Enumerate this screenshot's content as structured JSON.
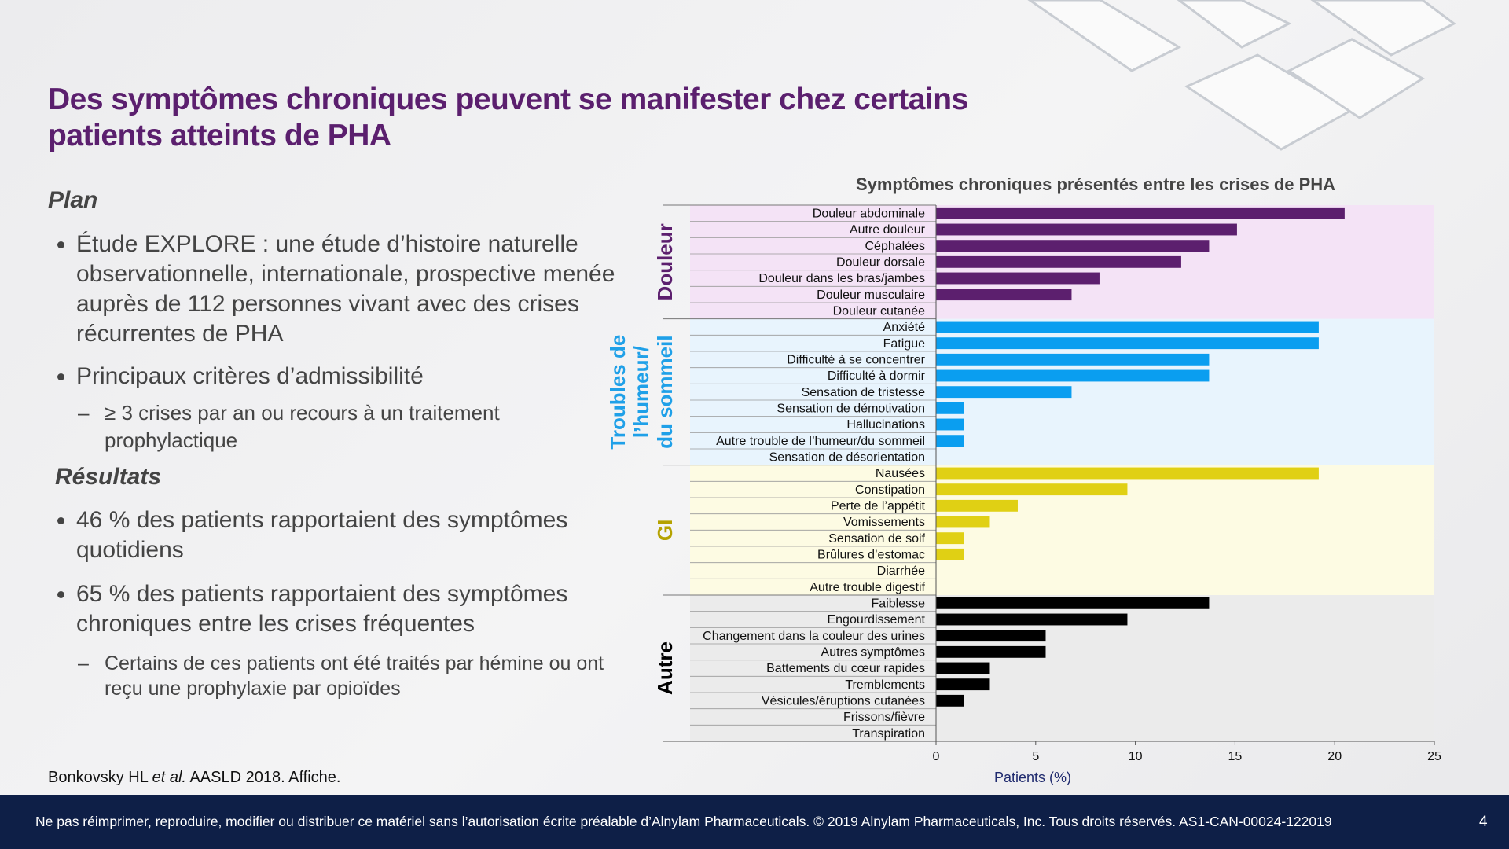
{
  "header": {
    "title": "Des symptômes chroniques peuvent se manifester chez certains patients atteints de PHA"
  },
  "plan": {
    "heading": "Plan",
    "bullets": [
      "Étude EXPLORE : une étude d’histoire naturelle observationnelle, internationale, prospective menée auprès de 112 personnes vivant avec des crises récurrentes de PHA",
      "Principaux critères d’admissibilité"
    ],
    "sub_bullet": "≥ 3 crises par an ou recours à un traitement prophylactique"
  },
  "results": {
    "heading": "Résultats",
    "bullets": [
      "46 % des patients rapportaient des symptômes quotidiens",
      "65 % des patients rapportaient des symptômes chroniques entre les crises fréquentes"
    ],
    "sub_bullet": "Certains de ces patients ont été traités par hémine ou ont reçu une prophylaxie par opioïdes"
  },
  "reference": [
    "Bonkovsky HL ",
    "et al.",
    " AASLD 2018. Affiche."
  ],
  "footer": {
    "text": "Ne pas réimprimer, reproduire, modifier ou distribuer ce matériel sans l’autorisation écrite préalable d’Alnylam Pharmaceuticals. © 2019 Alnylam Pharmaceuticals, Inc. Tous droits réservés. AS1-CAN-00024-122019",
    "page": "4"
  },
  "chart_data": {
    "type": "grouped-hbar",
    "title": "Symptômes chroniques présentés entre les crises de PHA",
    "x_label": "Patients (%)",
    "xlim": [
      0,
      25
    ],
    "xticks": [
      0,
      5,
      10,
      15,
      20,
      25
    ],
    "groups": [
      {
        "label_lines": [
          "Douleur"
        ],
        "color": "#5c1f6e",
        "label_color": "#5c1f6e",
        "background": "#f4e3f6",
        "categories": [
          "Douleur abdominale",
          "Autre douleur",
          "Céphalées",
          "Douleur dorsale",
          "Douleur dans les bras/jambes",
          "Douleur musculaire",
          "Douleur cutanée"
        ],
        "values": [
          20.5,
          15.1,
          13.7,
          12.3,
          8.2,
          6.8,
          0
        ]
      },
      {
        "label_lines": [
          "Troubles de",
          "l’humeur/",
          "du sommeil"
        ],
        "color": "#0a9ef0",
        "label_color": "#1fa0e8",
        "background": "#e8f4fd",
        "categories": [
          "Anxiété",
          "Fatigue",
          "Difficulté à se concentrer",
          "Difficulté à dormir",
          "Sensation de tristesse",
          "Sensation de démotivation",
          "Hallucinations",
          "Autre trouble de l’humeur/du sommeil",
          "Sensation de désorientation"
        ],
        "values": [
          19.2,
          19.2,
          13.7,
          13.7,
          6.8,
          1.4,
          1.4,
          1.4,
          0
        ]
      },
      {
        "label_lines": [
          "GI"
        ],
        "color": "#e0d014",
        "label_color": "#b5a200",
        "background": "#fdfbe3",
        "categories": [
          "Nausées",
          "Constipation",
          "Perte de l’appétit",
          "Vomissements",
          "Sensation de soif",
          "Brûlures d’estomac",
          "Diarrhée",
          "Autre trouble digestif"
        ],
        "values": [
          19.2,
          9.6,
          4.1,
          2.7,
          1.4,
          1.4,
          0,
          0
        ]
      },
      {
        "label_lines": [
          "Autre"
        ],
        "color": "#000000",
        "label_color": "#000000",
        "background": "#ebebeb",
        "categories": [
          "Faiblesse",
          "Engourdissement",
          "Changement dans la couleur des urines",
          "Autres symptômes",
          "Battements du cœur rapides",
          "Tremblements",
          "Vésicules/éruptions cutanées",
          "Frissons/fièvre",
          "Transpiration"
        ],
        "values": [
          13.7,
          9.6,
          5.5,
          5.5,
          2.7,
          2.7,
          1.4,
          0,
          0
        ]
      }
    ]
  }
}
